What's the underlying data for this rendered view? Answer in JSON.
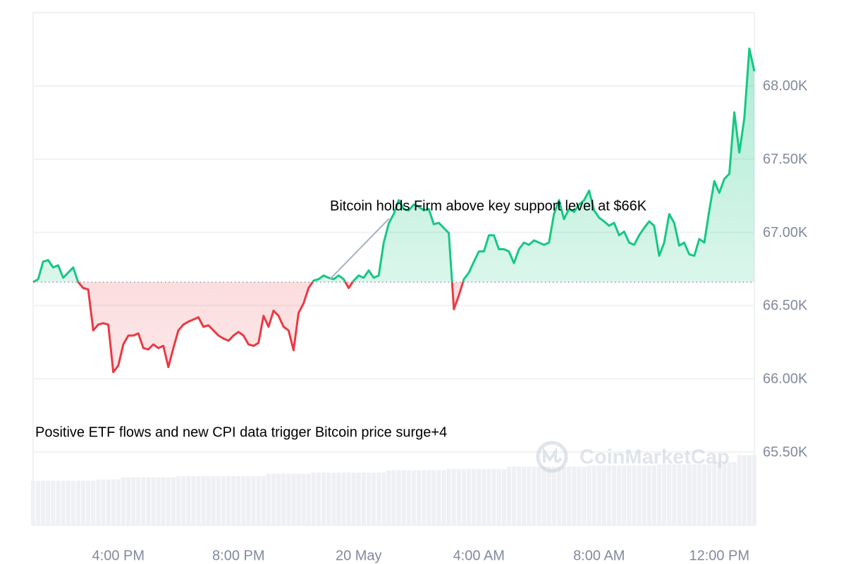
{
  "chart_data": {
    "type": "line",
    "values": [
      66660,
      66680,
      66800,
      66810,
      66760,
      66775,
      66690,
      66725,
      66760,
      66660,
      66620,
      66610,
      66330,
      66370,
      66380,
      66370,
      66045,
      66090,
      66235,
      66295,
      66295,
      66310,
      66210,
      66200,
      66235,
      66210,
      66225,
      66080,
      66210,
      66330,
      66370,
      66390,
      66405,
      66420,
      66355,
      66365,
      66330,
      66295,
      66275,
      66260,
      66295,
      66320,
      66295,
      66235,
      66225,
      66245,
      66430,
      66355,
      66465,
      66430,
      66355,
      66330,
      66195,
      66450,
      66515,
      66620,
      66670,
      66680,
      66705,
      66690,
      66680,
      66705,
      66680,
      66620,
      66670,
      66705,
      66690,
      66740,
      66690,
      66705,
      66930,
      67060,
      67125,
      67220,
      67160,
      67150,
      67190,
      67175,
      67150,
      67160,
      67055,
      67065,
      67030,
      66995,
      66475,
      66570,
      66680,
      66725,
      66800,
      66870,
      66870,
      66980,
      66980,
      66885,
      66885,
      66870,
      66790,
      66885,
      66930,
      66915,
      66945,
      66930,
      66915,
      66930,
      67125,
      67220,
      67090,
      67160,
      67140,
      67190,
      67220,
      67285,
      67150,
      67100,
      67075,
      67045,
      67065,
      66980,
      67005,
      66930,
      66915,
      66980,
      67030,
      67075,
      67045,
      66840,
      66930,
      67125,
      67065,
      66910,
      66930,
      66850,
      66840,
      66955,
      66930,
      67150,
      67350,
      67270,
      67365,
      67400,
      67820,
      67545,
      67780,
      68255,
      68100
    ],
    "baseline": 66660,
    "color_up": "#16c784",
    "color_down": "#ea3943",
    "volume": [
      19,
      19,
      19,
      19,
      19,
      19,
      19,
      19,
      19,
      19,
      19,
      19,
      19,
      19.5,
      19.5,
      19.5,
      19.5,
      19.5,
      20.5,
      20.5,
      20.5,
      20.5,
      20.5,
      20.5,
      20.5,
      20.5,
      20.5,
      20.5,
      20.5,
      21,
      21,
      21,
      21,
      21,
      21,
      21,
      21,
      21,
      21,
      21,
      21,
      21,
      21,
      21,
      21,
      21,
      21,
      22,
      22,
      22,
      22,
      22,
      22,
      22,
      22,
      22,
      22.5,
      22.5,
      22.5,
      22.5,
      22.5,
      22.5,
      22.5,
      22.5,
      22.5,
      22.5,
      22.5,
      22.5,
      22.5,
      22.5,
      22.5,
      23.5,
      23.5,
      23.5,
      23.5,
      23.5,
      23.5,
      23.5,
      23.5,
      23.5,
      23.5,
      23.5,
      23.5,
      24,
      24,
      24,
      24,
      24,
      24,
      24,
      24,
      24,
      24,
      24,
      24,
      25,
      25,
      25,
      25,
      25,
      25,
      25,
      25,
      25,
      25,
      25,
      25,
      25,
      25,
      25,
      25,
      25.5,
      25.5,
      25.5,
      25.5,
      25.5,
      25.5,
      25.5,
      25.5,
      25.5,
      25.5,
      25.5,
      25.5,
      25.5,
      25.5,
      26,
      26,
      26,
      26,
      26,
      26,
      26,
      26,
      26,
      26,
      26,
      27,
      27,
      27,
      27,
      27,
      30,
      30,
      30,
      30
    ],
    "volume_lim": [
      0,
      31
    ],
    "volume_color": "#eef0f3",
    "xlim": [
      0,
      144
    ],
    "xticks": [
      {
        "value": 17,
        "label": "4:00 PM"
      },
      {
        "value": 41,
        "label": "8:00 PM"
      },
      {
        "value": 65,
        "label": "20 May"
      },
      {
        "value": 89,
        "label": "4:00 AM"
      },
      {
        "value": 113,
        "label": "8:00 AM"
      },
      {
        "value": 137,
        "label": "12:00 PM"
      }
    ],
    "ylim": [
      65000,
      68500
    ],
    "yticks": [
      {
        "value": 65500,
        "label": "65.50K"
      },
      {
        "value": 66000,
        "label": "66.00K"
      },
      {
        "value": 66500,
        "label": "66.50K"
      },
      {
        "value": 67000,
        "label": "67.00K"
      },
      {
        "value": 67500,
        "label": "67.50K"
      },
      {
        "value": 68000,
        "label": "68.00K"
      }
    ],
    "grid": true,
    "annotations": [
      "Bitcoin holds Firm above key support level at $66K",
      "Positive ETF flows and new CPI data trigger Bitcoin price surge+4"
    ],
    "watermark": "CoinMarketCap"
  }
}
